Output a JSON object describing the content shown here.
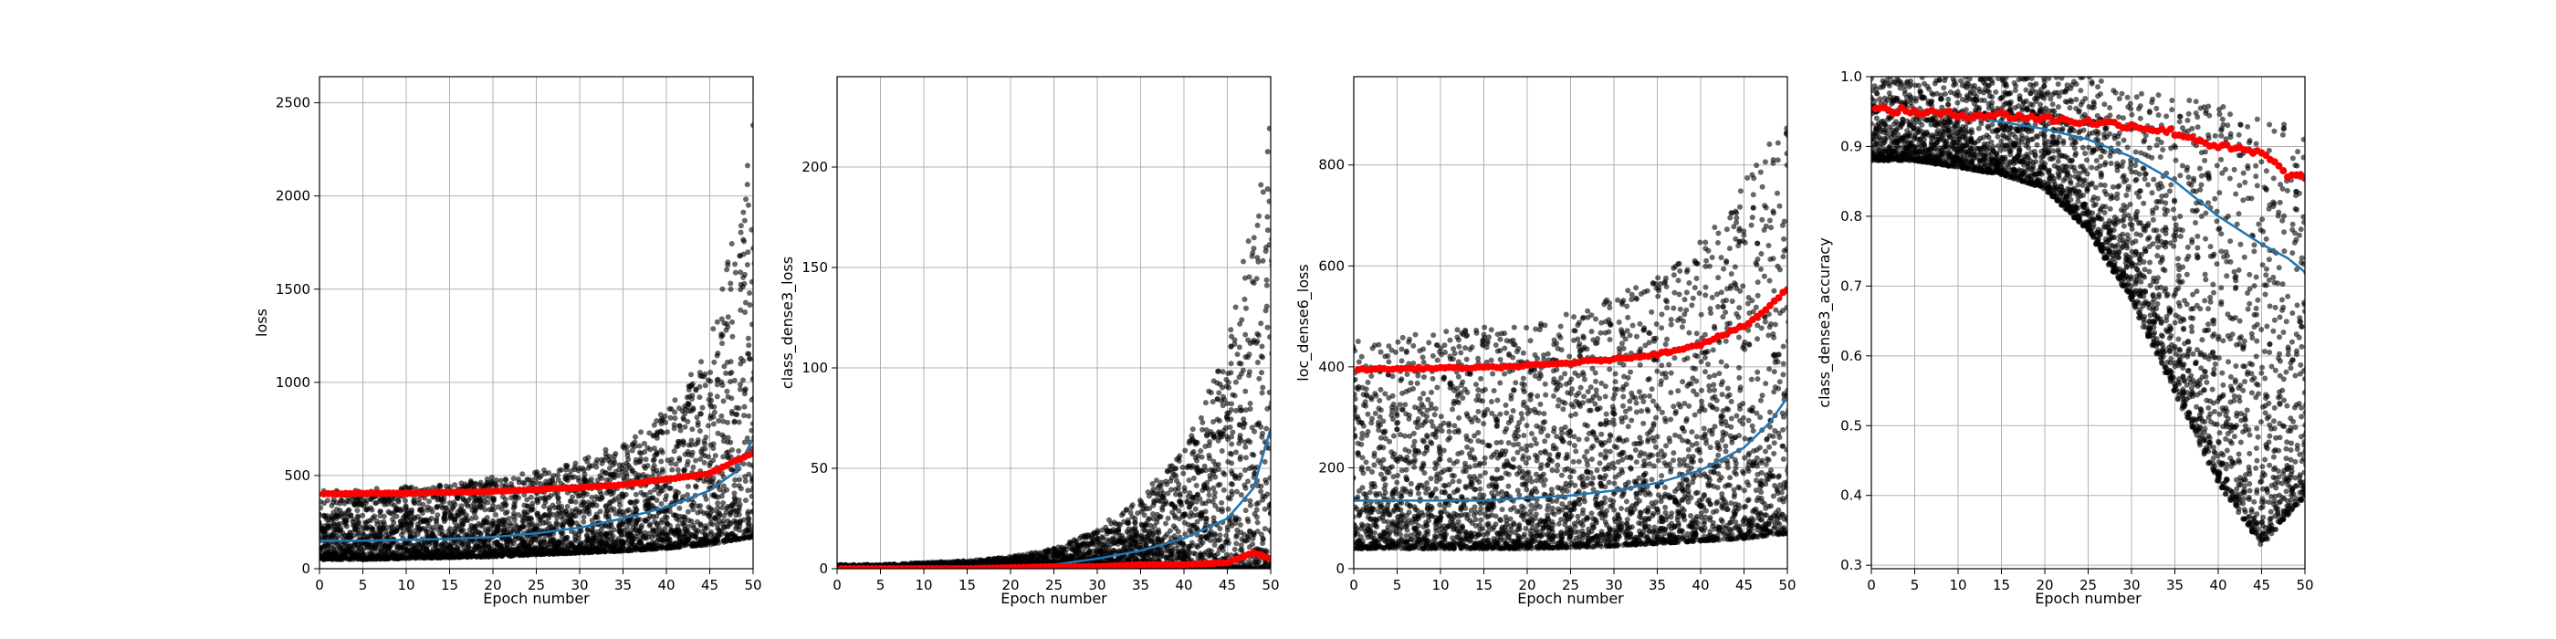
{
  "figure": {
    "background": "#ffffff"
  },
  "colors": {
    "scatter": "#000000",
    "trend": "#1f77b4",
    "mean": "#ff0000",
    "grid": "#b0b0b0"
  },
  "chart_data": [
    {
      "type": "scatter",
      "xlabel": "Epoch number",
      "ylabel": "loss",
      "xlim": [
        0,
        50
      ],
      "ylim": [
        0,
        2640
      ],
      "xticks": [
        "0",
        "5",
        "10",
        "15",
        "20",
        "25",
        "30",
        "35",
        "40",
        "45",
        "50"
      ],
      "yticks": [
        "0",
        "500",
        "1000",
        "1500",
        "2000",
        "2500"
      ],
      "grid": true,
      "series": [
        {
          "kind": "points",
          "x_range": [
            0,
            50
          ],
          "lower": [
            50,
            50,
            55,
            60,
            65,
            75,
            85,
            95,
            110,
            130,
            170
          ],
          "upper": [
            420,
            430,
            440,
            460,
            490,
            520,
            580,
            680,
            850,
            1200,
            2400
          ]
        },
        {
          "kind": "oscillating-line",
          "x": [
            0,
            5,
            10,
            15,
            20,
            25,
            30,
            35,
            40,
            45,
            48,
            50
          ],
          "values": [
            150,
            150,
            155,
            160,
            170,
            190,
            220,
            270,
            330,
            420,
            520,
            700
          ],
          "amplitude": [
            30,
            30,
            30,
            32,
            35,
            40,
            45,
            55,
            70,
            90,
            120,
            200
          ]
        },
        {
          "kind": "mean-markers",
          "x": [
            0,
            5,
            10,
            15,
            20,
            25,
            30,
            35,
            40,
            45,
            48,
            50
          ],
          "values": [
            400,
            405,
            405,
            410,
            415,
            425,
            435,
            450,
            480,
            510,
            580,
            620
          ]
        }
      ]
    },
    {
      "type": "scatter",
      "xlabel": "Epoch number",
      "ylabel": "class_dense3_loss",
      "xlim": [
        0,
        50
      ],
      "ylim": [
        0,
        245
      ],
      "xticks": [
        "0",
        "5",
        "10",
        "15",
        "20",
        "25",
        "30",
        "35",
        "40",
        "45",
        "50"
      ],
      "yticks": [
        "0",
        "50",
        "100",
        "150",
        "200"
      ],
      "grid": true,
      "series": [
        {
          "kind": "points",
          "x_range": [
            0,
            50
          ],
          "lower": [
            0,
            0,
            0,
            0,
            0,
            0,
            0,
            0,
            0,
            0,
            0
          ],
          "upper": [
            2,
            2,
            3,
            4,
            6,
            10,
            20,
            35,
            60,
            110,
            220
          ]
        },
        {
          "kind": "oscillating-line",
          "x": [
            0,
            5,
            10,
            15,
            20,
            25,
            30,
            35,
            40,
            45,
            48,
            50
          ],
          "values": [
            0,
            0,
            0,
            0.5,
            1,
            2,
            5,
            9,
            15,
            25,
            40,
            70
          ],
          "amplitude": [
            0,
            0,
            0.2,
            0.3,
            0.8,
            2,
            4,
            6,
            9,
            12,
            18,
            25
          ]
        },
        {
          "kind": "mean-markers",
          "x": [
            0,
            5,
            10,
            15,
            20,
            25,
            30,
            35,
            40,
            45,
            48,
            50
          ],
          "values": [
            0,
            0,
            0,
            0,
            0.5,
            1,
            1,
            2,
            2,
            3,
            8,
            5
          ]
        }
      ]
    },
    {
      "type": "scatter",
      "xlabel": "Epoch number",
      "ylabel": "loc_dense6_loss",
      "xlim": [
        0,
        50
      ],
      "ylim": [
        0,
        975
      ],
      "xticks": [
        "0",
        "5",
        "10",
        "15",
        "20",
        "25",
        "30",
        "35",
        "40",
        "45",
        "50"
      ],
      "yticks": [
        "0",
        "200",
        "400",
        "600",
        "800"
      ],
      "grid": true,
      "series": [
        {
          "kind": "points",
          "x_range": [
            0,
            50
          ],
          "lower": [
            40,
            40,
            40,
            40,
            40,
            42,
            45,
            50,
            55,
            60,
            70
          ],
          "upper": [
            450,
            460,
            470,
            480,
            490,
            510,
            540,
            580,
            650,
            760,
            920
          ]
        },
        {
          "kind": "oscillating-line",
          "x": [
            0,
            5,
            10,
            15,
            20,
            25,
            30,
            35,
            40,
            45,
            48,
            50
          ],
          "values": [
            135,
            135,
            135,
            135,
            140,
            145,
            155,
            170,
            195,
            240,
            290,
            340
          ],
          "amplitude": [
            25,
            25,
            25,
            25,
            26,
            28,
            30,
            33,
            38,
            45,
            50,
            60
          ]
        },
        {
          "kind": "mean-markers",
          "x": [
            0,
            5,
            10,
            15,
            20,
            25,
            30,
            35,
            40,
            45,
            48,
            50
          ],
          "values": [
            395,
            396,
            398,
            398,
            402,
            408,
            415,
            425,
            445,
            480,
            520,
            555
          ]
        }
      ]
    },
    {
      "type": "scatter",
      "xlabel": "Epoch number",
      "ylabel": "class_dense3_accuracy",
      "xlim": [
        0,
        50
      ],
      "ylim": [
        0.295,
        1.0
      ],
      "xticks": [
        "0",
        "5",
        "10",
        "15",
        "20",
        "25",
        "30",
        "35",
        "40",
        "45",
        "50"
      ],
      "yticks": [
        "0.3",
        "0.4",
        "0.5",
        "0.6",
        "0.7",
        "0.8",
        "0.9",
        "1.0"
      ],
      "grid": true,
      "series": [
        {
          "kind": "points",
          "x_range": [
            0,
            50
          ],
          "lower": [
            0.88,
            0.88,
            0.87,
            0.86,
            0.84,
            0.78,
            0.68,
            0.55,
            0.42,
            0.33,
            0.4
          ],
          "upper": [
            1.0,
            1.0,
            1.0,
            1.0,
            1.0,
            1.0,
            0.98,
            0.97,
            0.96,
            0.95,
            0.94
          ]
        },
        {
          "kind": "oscillating-line",
          "x": [
            0,
            5,
            10,
            15,
            20,
            25,
            30,
            35,
            40,
            45,
            48,
            50
          ],
          "values": [
            0.955,
            0.95,
            0.945,
            0.935,
            0.925,
            0.91,
            0.885,
            0.85,
            0.8,
            0.76,
            0.74,
            0.72
          ],
          "amplitude": [
            0.005,
            0.006,
            0.008,
            0.01,
            0.012,
            0.02,
            0.03,
            0.045,
            0.07,
            0.08,
            0.09,
            0.1
          ]
        },
        {
          "kind": "mean-markers",
          "x": [
            0,
            5,
            10,
            15,
            20,
            25,
            30,
            35,
            40,
            45,
            48,
            50
          ],
          "values": [
            0.953,
            0.95,
            0.945,
            0.945,
            0.94,
            0.935,
            0.93,
            0.92,
            0.9,
            0.89,
            0.86,
            0.855
          ]
        }
      ]
    }
  ]
}
